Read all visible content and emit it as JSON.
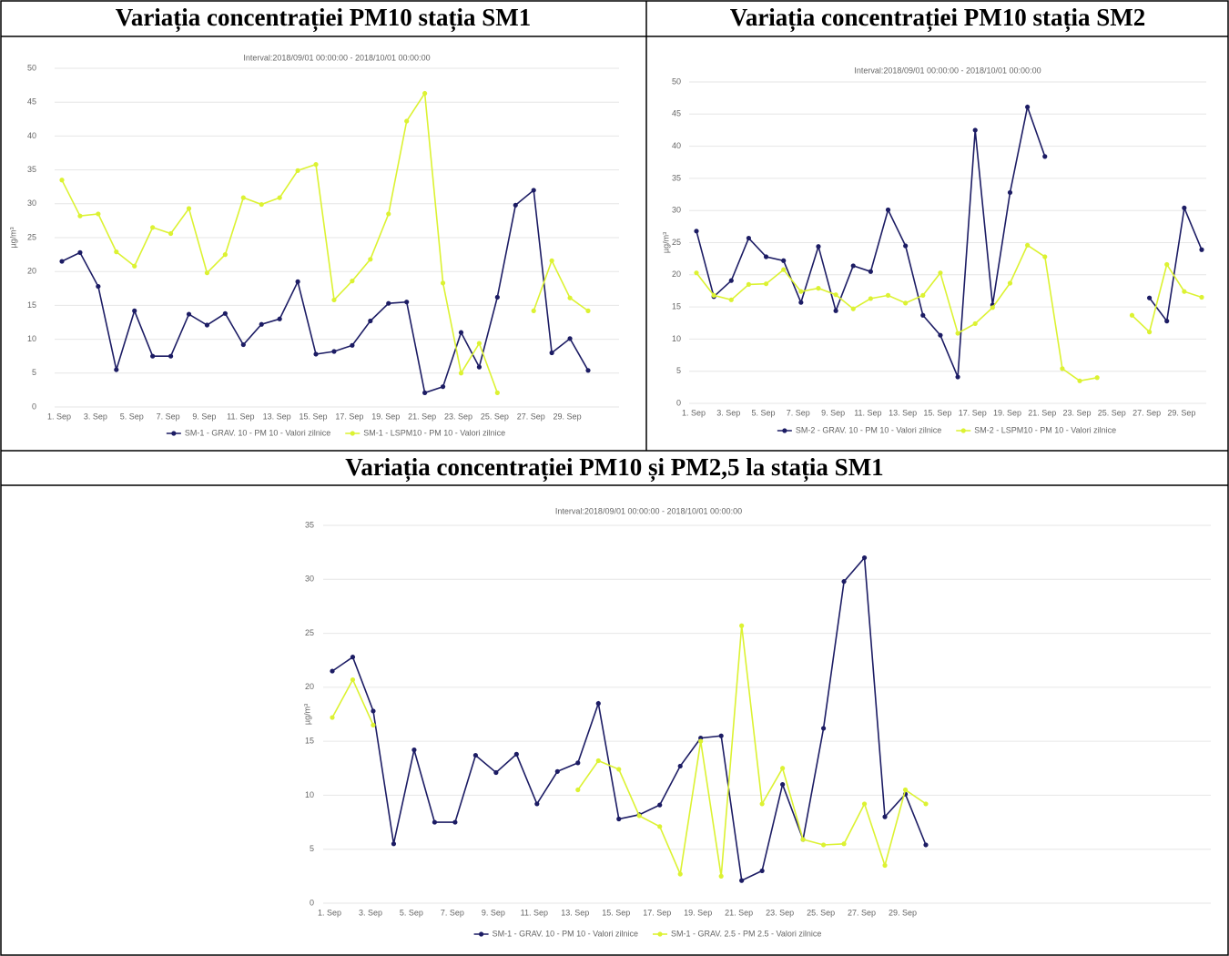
{
  "chart_data": [
    {
      "type": "line",
      "title": "Variația concentrației PM10 stația SM1",
      "subtitle": "Interval:2018/09/01 00:00:00 - 2018/10/01 00:00:00",
      "y_label": "µg/m³",
      "categories": [
        "1. Sep",
        null,
        "3. Sep",
        null,
        "5. Sep",
        null,
        "7. Sep",
        null,
        "9. Sep",
        null,
        "11. Sep",
        null,
        "13. Sep",
        null,
        "15. Sep",
        null,
        "17. Sep",
        null,
        "19. Sep",
        null,
        "21. Sep",
        null,
        "23. Sep",
        null,
        "25. Sep",
        null,
        "27. Sep",
        null,
        "29. Sep",
        null
      ],
      "ylim": [
        0,
        50
      ],
      "yticks": [
        0,
        5,
        10,
        15,
        20,
        25,
        30,
        35,
        40,
        45,
        50
      ],
      "grid": true,
      "series": [
        {
          "name": "SM-1 - GRAV. 10 - PM 10 - Valori zilnice",
          "color": "#1c1c64",
          "values": [
            21.5,
            22.8,
            17.8,
            5.5,
            14.2,
            7.5,
            7.5,
            13.7,
            12.1,
            13.8,
            9.2,
            12.2,
            13.0,
            18.5,
            7.8,
            8.2,
            9.1,
            12.7,
            15.3,
            15.5,
            2.1,
            3.0,
            11.0,
            5.9,
            16.2,
            29.8,
            32.0,
            8.0,
            10.1,
            5.4
          ]
        },
        {
          "name": "SM-1 - LSPM10 - PM 10 - Valori zilnice",
          "color": "#dcf232",
          "values": [
            33.5,
            28.2,
            28.5,
            22.9,
            20.8,
            26.5,
            25.6,
            29.3,
            19.8,
            22.5,
            30.9,
            29.9,
            30.9,
            34.9,
            35.8,
            15.8,
            18.6,
            21.8,
            28.5,
            42.2,
            46.3,
            18.3,
            5.0,
            9.4,
            2.1,
            null,
            14.2,
            21.6,
            16.1,
            14.2
          ]
        }
      ]
    },
    {
      "type": "line",
      "title": "Variația concentrației PM10 stația SM2",
      "subtitle": "Interval:2018/09/01 00:00:00 - 2018/10/01 00:00:00",
      "y_label": "µg/m³",
      "categories": [
        "1. Sep",
        null,
        "3. Sep",
        null,
        "5. Sep",
        null,
        "7. Sep",
        null,
        "9. Sep",
        null,
        "11. Sep",
        null,
        "13. Sep",
        null,
        "15. Sep",
        null,
        "17. Sep",
        null,
        "19. Sep",
        null,
        "21. Sep",
        null,
        "23. Sep",
        null,
        "25. Sep",
        null,
        "27. Sep",
        null,
        "29. Sep",
        null
      ],
      "ylim": [
        0,
        50
      ],
      "yticks": [
        0,
        5,
        10,
        15,
        20,
        25,
        30,
        35,
        40,
        45,
        50
      ],
      "grid": true,
      "series": [
        {
          "name": "SM-2 - GRAV. 10 - PM 10 - Valori zilnice",
          "color": "#1c1c64",
          "values": [
            26.8,
            16.6,
            19.1,
            25.7,
            22.8,
            22.2,
            15.7,
            24.4,
            14.4,
            21.4,
            20.5,
            30.1,
            24.5,
            13.7,
            10.6,
            4.1,
            42.5,
            15.3,
            32.8,
            46.1,
            38.4,
            null,
            null,
            null,
            null,
            null,
            16.4,
            12.8,
            30.4,
            23.9
          ]
        },
        {
          "name": "SM-2 - LSPM10 - PM 10 - Valori zilnice",
          "color": "#dcf232",
          "values": [
            20.3,
            16.8,
            16.1,
            18.5,
            18.6,
            20.8,
            17.4,
            17.9,
            16.9,
            14.7,
            16.3,
            16.8,
            15.6,
            16.8,
            20.3,
            10.9,
            12.4,
            14.9,
            18.7,
            24.6,
            22.8,
            5.4,
            3.5,
            4.0,
            null,
            13.7,
            11.1,
            21.6,
            17.4,
            16.5
          ]
        }
      ]
    },
    {
      "type": "line",
      "title": "Variația concentrației PM10 și PM2,5 la stația SM1",
      "subtitle": "Interval:2018/09/01 00:00:00 - 2018/10/01 00:00:00",
      "y_label": "µg/m³",
      "categories": [
        "1. Sep",
        null,
        "3. Sep",
        null,
        "5. Sep",
        null,
        "7. Sep",
        null,
        "9. Sep",
        null,
        "11. Sep",
        null,
        "13. Sep",
        null,
        "15. Sep",
        null,
        "17. Sep",
        null,
        "19. Sep",
        null,
        "21. Sep",
        null,
        "23. Sep",
        null,
        "25. Sep",
        null,
        "27. Sep",
        null,
        "29. Sep",
        null
      ],
      "ylim": [
        0,
        35
      ],
      "yticks": [
        0,
        5,
        10,
        15,
        20,
        25,
        30,
        35
      ],
      "grid": true,
      "series": [
        {
          "name": "SM-1 - GRAV. 10 - PM 10 - Valori zilnice",
          "color": "#1c1c64",
          "values": [
            21.5,
            22.8,
            17.8,
            5.5,
            14.2,
            7.5,
            7.5,
            13.7,
            12.1,
            13.8,
            9.2,
            12.2,
            13.0,
            18.5,
            7.8,
            8.2,
            9.1,
            12.7,
            15.3,
            15.5,
            2.1,
            3.0,
            11.0,
            5.9,
            16.2,
            29.8,
            32.0,
            8.0,
            10.1,
            5.4
          ]
        },
        {
          "name": "SM-1 - GRAV. 2.5 - PM 2.5 - Valori zilnice",
          "color": "#dcf232",
          "values": [
            17.2,
            20.7,
            16.5,
            null,
            null,
            null,
            null,
            null,
            null,
            null,
            null,
            null,
            10.5,
            13.2,
            12.4,
            8.1,
            7.1,
            2.7,
            15.0,
            2.5,
            25.7,
            9.2,
            12.5,
            5.9,
            5.4,
            5.5,
            9.2,
            3.5,
            10.5,
            9.2
          ]
        }
      ]
    }
  ]
}
